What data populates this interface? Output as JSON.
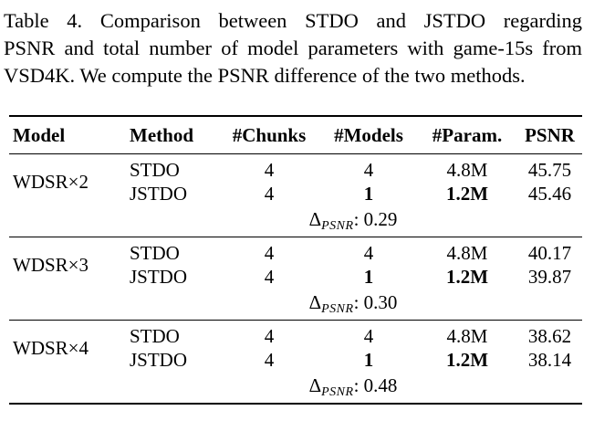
{
  "caption": {
    "line1": "Table 4.  Comparison between STDO and JSTDO regarding",
    "line2": "PSNR and total number of model parameters with game-15s from",
    "line3": "VSD4K. We compute the PSNR difference of the two methods."
  },
  "table": {
    "headers": [
      "Model",
      "Method",
      "#Chunks",
      "#Models",
      "#Param.",
      "PSNR"
    ],
    "delta_symbol": "Δ",
    "delta_sub": "PSNR",
    "groups": [
      {
        "model": "WDSR×2",
        "rows": [
          {
            "method": "STDO",
            "chunks": "4",
            "models": "4",
            "param": "4.8M",
            "psnr": "45.75"
          },
          {
            "method": "JSTDO",
            "chunks": "4",
            "models": "1",
            "param": "1.2M",
            "psnr": "45.46"
          }
        ],
        "delta": ": 0.29"
      },
      {
        "model": "WDSR×3",
        "rows": [
          {
            "method": "STDO",
            "chunks": "4",
            "models": "4",
            "param": "4.8M",
            "psnr": "40.17"
          },
          {
            "method": "JSTDO",
            "chunks": "4",
            "models": "1",
            "param": "1.2M",
            "psnr": "39.87"
          }
        ],
        "delta": ": 0.30"
      },
      {
        "model": "WDSR×4",
        "rows": [
          {
            "method": "STDO",
            "chunks": "4",
            "models": "4",
            "param": "4.8M",
            "psnr": "38.62"
          },
          {
            "method": "JSTDO",
            "chunks": "4",
            "models": "1",
            "param": "1.2M",
            "psnr": "38.14"
          }
        ],
        "delta": ": 0.48"
      }
    ]
  }
}
